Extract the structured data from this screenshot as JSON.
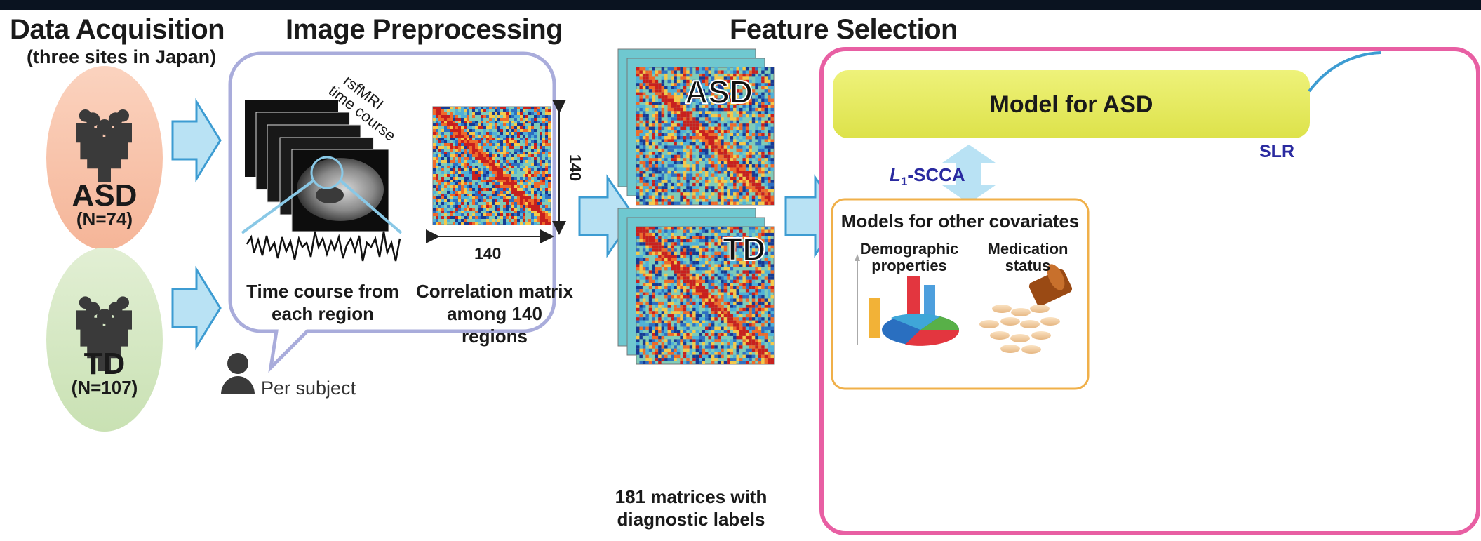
{
  "headings": {
    "acquisition": "Data Acquisition",
    "acquisition_sub": "(three sites in Japan)",
    "preprocessing": "Image Preprocessing",
    "selection": "Feature Selection"
  },
  "groups": {
    "asd_label": "ASD",
    "asd_n": "(N=74)",
    "td_label": "TD",
    "td_n": "(N=107)"
  },
  "preprocessing": {
    "rsfmri_line1": "rsfMRI",
    "rsfmri_line2": "time course",
    "timecourse_caption_1": "Time course from",
    "timecourse_caption_2": "each region",
    "matrix_caption_1": "Correlation matrix",
    "matrix_caption_2": "among 140 regions",
    "matrix_dim_h": "140",
    "matrix_dim_v": "140",
    "per_subject": "Per subject"
  },
  "selection": {
    "stack_asd": "ASD",
    "stack_td": "TD",
    "caption_1": "181 matrices with",
    "caption_2": "diagnostic labels"
  },
  "model": {
    "model_asd": "Model for ASD",
    "slr": "SLR",
    "scca_l": "L",
    "scca_sub": "1",
    "scca_rest": "-SCCA",
    "other_covariates": "Models for other covariates",
    "demographic_1": "Demographic",
    "demographic_2": "properties",
    "medication_1": "Medication",
    "medication_2": "status"
  },
  "colors": {
    "asd_oval": "#f9c6ad",
    "td_oval": "#d6e8c4",
    "arrow_fill": "#b9e2f4",
    "arrow_stroke": "#3d9cd2",
    "bubble_border": "#a9acdb",
    "model_border": "#e85fa3",
    "model_asd_fill": "#e8ee58",
    "covariate_border": "#f0b04a"
  }
}
